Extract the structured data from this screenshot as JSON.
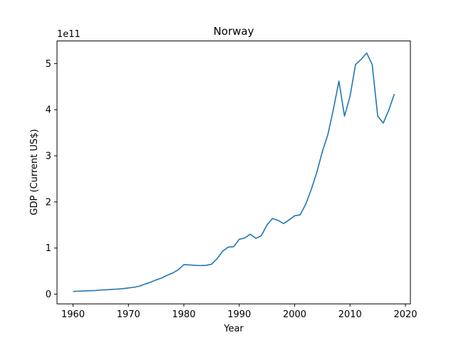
{
  "chart_data": {
    "type": "line",
    "title": "Norway",
    "xlabel": "Year",
    "ylabel": "GDP (Current US$)",
    "y_offset_label": "1e11",
    "xlim": [
      1957.1,
      2020.9
    ],
    "ylim": [
      -0.21,
      5.49
    ],
    "x_ticks": [
      1960,
      1970,
      1980,
      1990,
      2000,
      2010,
      2020
    ],
    "x_tick_labels": [
      "1960",
      "1970",
      "1980",
      "1990",
      "2000",
      "2010",
      "2020"
    ],
    "y_ticks": [
      0,
      1,
      2,
      3,
      4,
      5
    ],
    "y_tick_labels": [
      "0",
      "1",
      "2",
      "3",
      "4",
      "5"
    ],
    "y_units": "1e11 current US$",
    "grid": false,
    "legend": "none",
    "series": [
      {
        "color": "#1f77b4",
        "x": [
          1960,
          1961,
          1962,
          1963,
          1964,
          1965,
          1966,
          1967,
          1968,
          1969,
          1970,
          1971,
          1972,
          1973,
          1974,
          1975,
          1976,
          1977,
          1978,
          1979,
          1980,
          1981,
          1982,
          1983,
          1984,
          1985,
          1986,
          1987,
          1988,
          1989,
          1990,
          1991,
          1992,
          1993,
          1994,
          1995,
          1996,
          1997,
          1998,
          1999,
          2000,
          2001,
          2002,
          2003,
          2004,
          2005,
          2006,
          2007,
          2008,
          2009,
          2010,
          2011,
          2012,
          2013,
          2014,
          2015,
          2016,
          2017,
          2018
        ],
        "y": [
          0.06,
          0.065,
          0.07,
          0.075,
          0.08,
          0.09,
          0.095,
          0.105,
          0.11,
          0.12,
          0.135,
          0.15,
          0.175,
          0.22,
          0.26,
          0.31,
          0.35,
          0.41,
          0.46,
          0.53,
          0.64,
          0.635,
          0.625,
          0.62,
          0.625,
          0.65,
          0.77,
          0.93,
          1.02,
          1.03,
          1.19,
          1.22,
          1.3,
          1.21,
          1.27,
          1.5,
          1.64,
          1.6,
          1.53,
          1.61,
          1.7,
          1.72,
          1.95,
          2.27,
          2.64,
          3.09,
          3.46,
          4.01,
          4.62,
          3.86,
          4.29,
          4.98,
          5.09,
          5.23,
          4.98,
          3.86,
          3.71,
          3.99,
          4.34
        ]
      }
    ]
  }
}
